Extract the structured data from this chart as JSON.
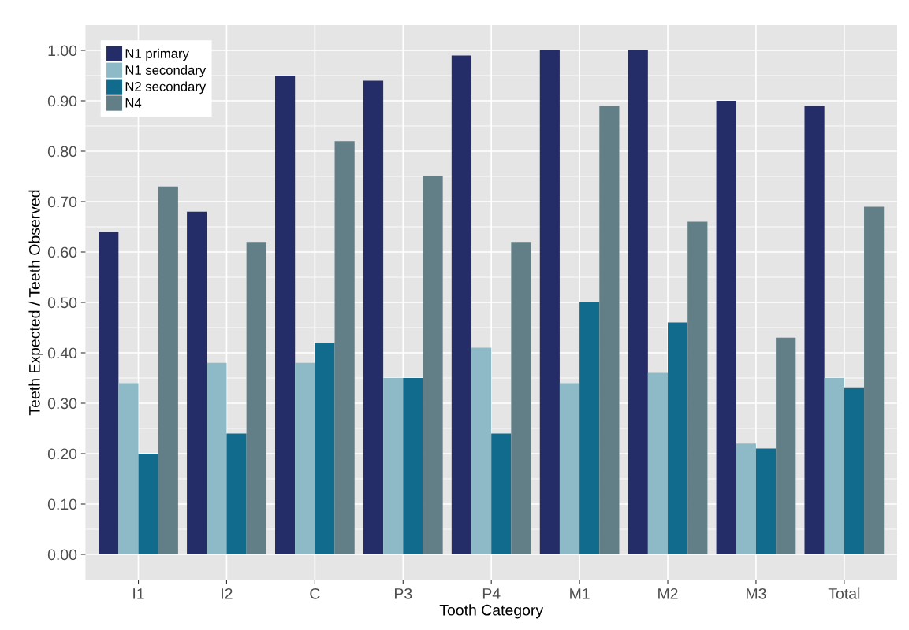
{
  "chart_data": {
    "type": "bar",
    "xlabel": "Tooth Category",
    "ylabel": "Teeth Expected / Teeth Observed",
    "categories": [
      "I1",
      "I2",
      "C",
      "P3",
      "P4",
      "M1",
      "M2",
      "M3",
      "Total"
    ],
    "series": [
      {
        "name": "N1 primary",
        "color": "#252d69",
        "values": [
          0.64,
          0.68,
          0.95,
          0.94,
          0.99,
          1.0,
          1.0,
          0.9,
          0.89
        ]
      },
      {
        "name": "N1 secondary",
        "color": "#8ebac8",
        "values": [
          0.34,
          0.38,
          0.38,
          0.35,
          0.41,
          0.34,
          0.36,
          0.22,
          0.35
        ]
      },
      {
        "name": "N2 secondary",
        "color": "#106b8d",
        "values": [
          0.2,
          0.24,
          0.42,
          0.35,
          0.24,
          0.5,
          0.46,
          0.21,
          0.33
        ]
      },
      {
        "name": "N4",
        "color": "#627e86",
        "values": [
          0.73,
          0.62,
          0.82,
          0.75,
          0.62,
          0.89,
          0.66,
          0.43,
          0.69
        ]
      }
    ],
    "ylim": [
      -0.05,
      1.05
    ],
    "yticks": [
      {
        "value": 0,
        "label": "0.00"
      },
      {
        "value": 0.1,
        "label": "0.10"
      },
      {
        "value": 0.2,
        "label": "0.20"
      },
      {
        "value": 0.3,
        "label": "0.30"
      },
      {
        "value": 0.4,
        "label": "0.40"
      },
      {
        "value": 0.5,
        "label": "0.50"
      },
      {
        "value": 0.6,
        "label": "0.60"
      },
      {
        "value": 0.7,
        "label": "0.70"
      },
      {
        "value": 0.8,
        "label": "0.80"
      },
      {
        "value": 0.9,
        "label": "0.90"
      },
      {
        "value": 1.0,
        "label": "1.00"
      }
    ],
    "grid": true,
    "legend": "top left"
  }
}
